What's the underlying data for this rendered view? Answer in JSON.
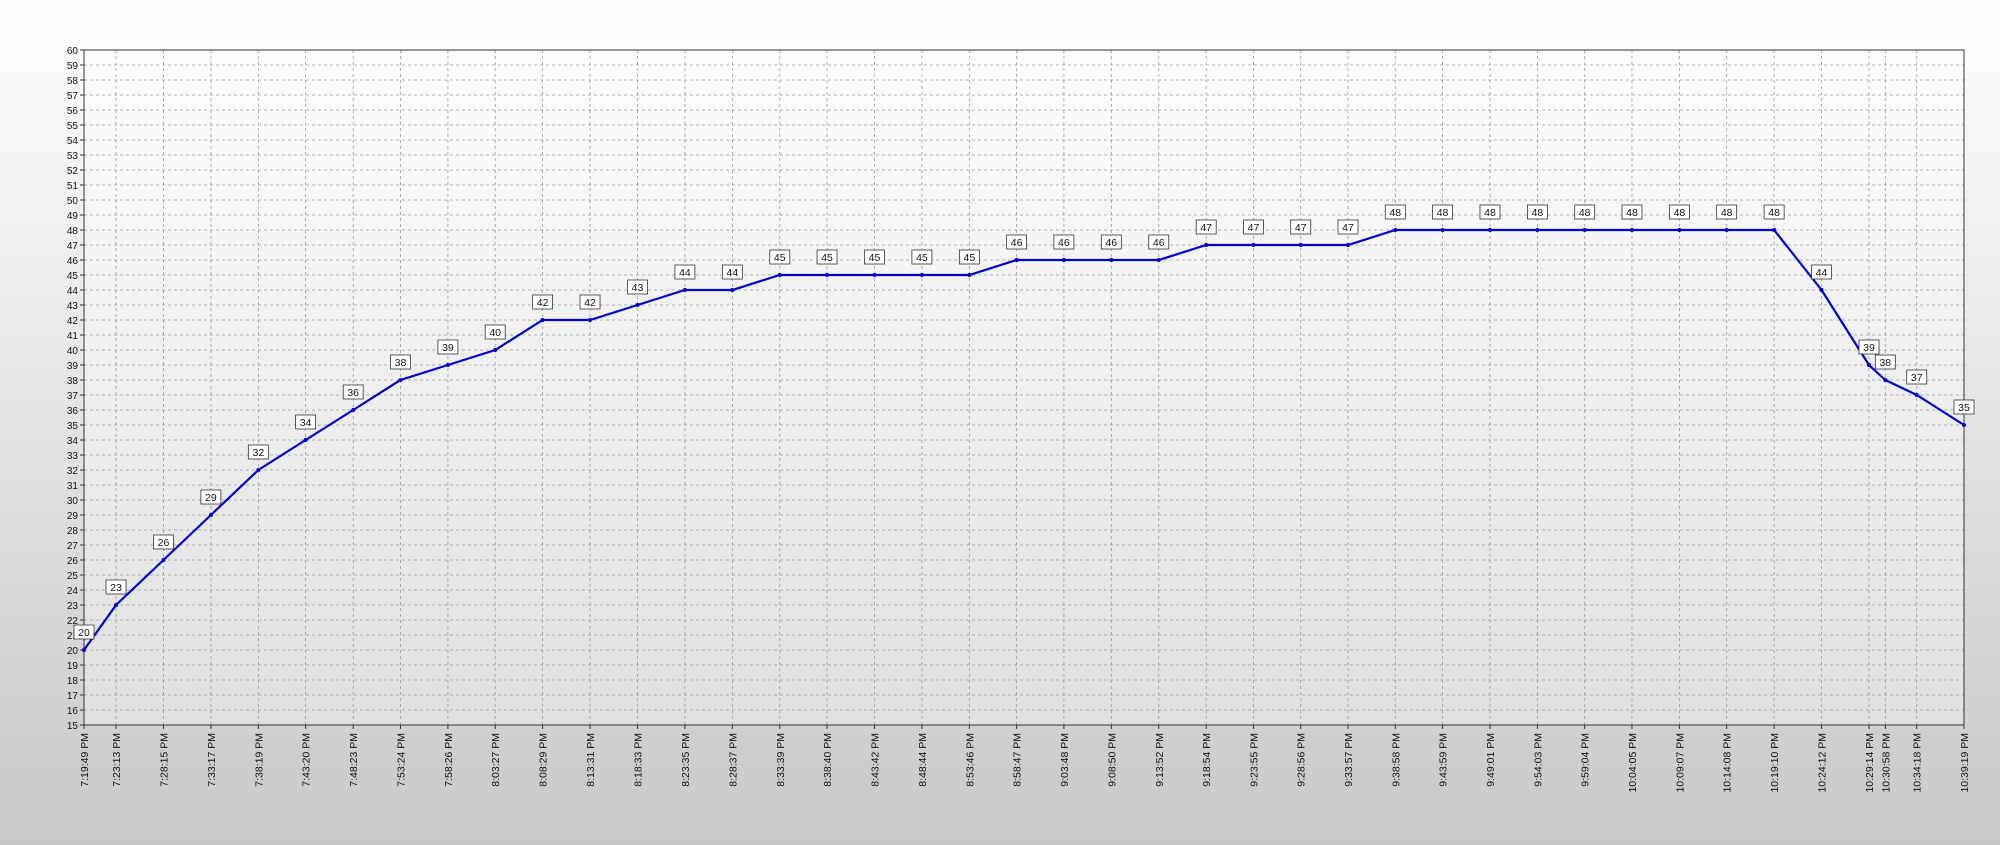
{
  "chart_data": {
    "type": "line",
    "x": [
      "7:19:49 PM",
      "7:23:13 PM",
      "7:28:15 PM",
      "7:33:17 PM",
      "7:38:19 PM",
      "7:43:20 PM",
      "7:48:23 PM",
      "7:53:24 PM",
      "7:58:26 PM",
      "8:03:27 PM",
      "8:08:29 PM",
      "8:13:31 PM",
      "8:18:33 PM",
      "8:23:35 PM",
      "8:28:37 PM",
      "8:33:39 PM",
      "8:38:40 PM",
      "8:43:42 PM",
      "8:48:44 PM",
      "8:53:46 PM",
      "8:58:47 PM",
      "9:03:48 PM",
      "9:08:50 PM",
      "9:13:52 PM",
      "9:18:54 PM",
      "9:23:55 PM",
      "9:28:56 PM",
      "9:33:57 PM",
      "9:38:58 PM",
      "9:43:59 PM",
      "9:49:01 PM",
      "9:54:03 PM",
      "9:59:04 PM",
      "10:04:05 PM",
      "10:09:07 PM",
      "10:14:08 PM",
      "10:19:10 PM",
      "10:24:12 PM",
      "10:29:14 PM",
      "10:30:58 PM",
      "10:34:18 PM",
      "10:39:19 PM"
    ],
    "values": [
      20,
      23,
      26,
      29,
      32,
      34,
      36,
      38,
      39,
      40,
      42,
      42,
      43,
      44,
      44,
      45,
      45,
      45,
      45,
      45,
      46,
      46,
      46,
      46,
      47,
      47,
      47,
      47,
      48,
      48,
      48,
      48,
      48,
      48,
      48,
      48,
      48,
      44,
      39,
      38,
      37,
      35
    ],
    "color": "#0000cc",
    "ylim": [
      15,
      60
    ],
    "yticks": [
      15,
      16,
      17,
      18,
      19,
      20,
      21,
      22,
      23,
      24,
      25,
      26,
      27,
      28,
      29,
      30,
      31,
      32,
      33,
      34,
      35,
      36,
      37,
      38,
      39,
      40,
      41,
      42,
      43,
      44,
      45,
      46,
      47,
      48,
      49,
      50,
      51,
      52,
      53,
      54,
      55,
      56,
      57,
      58,
      59,
      60
    ],
    "grid": true
  }
}
